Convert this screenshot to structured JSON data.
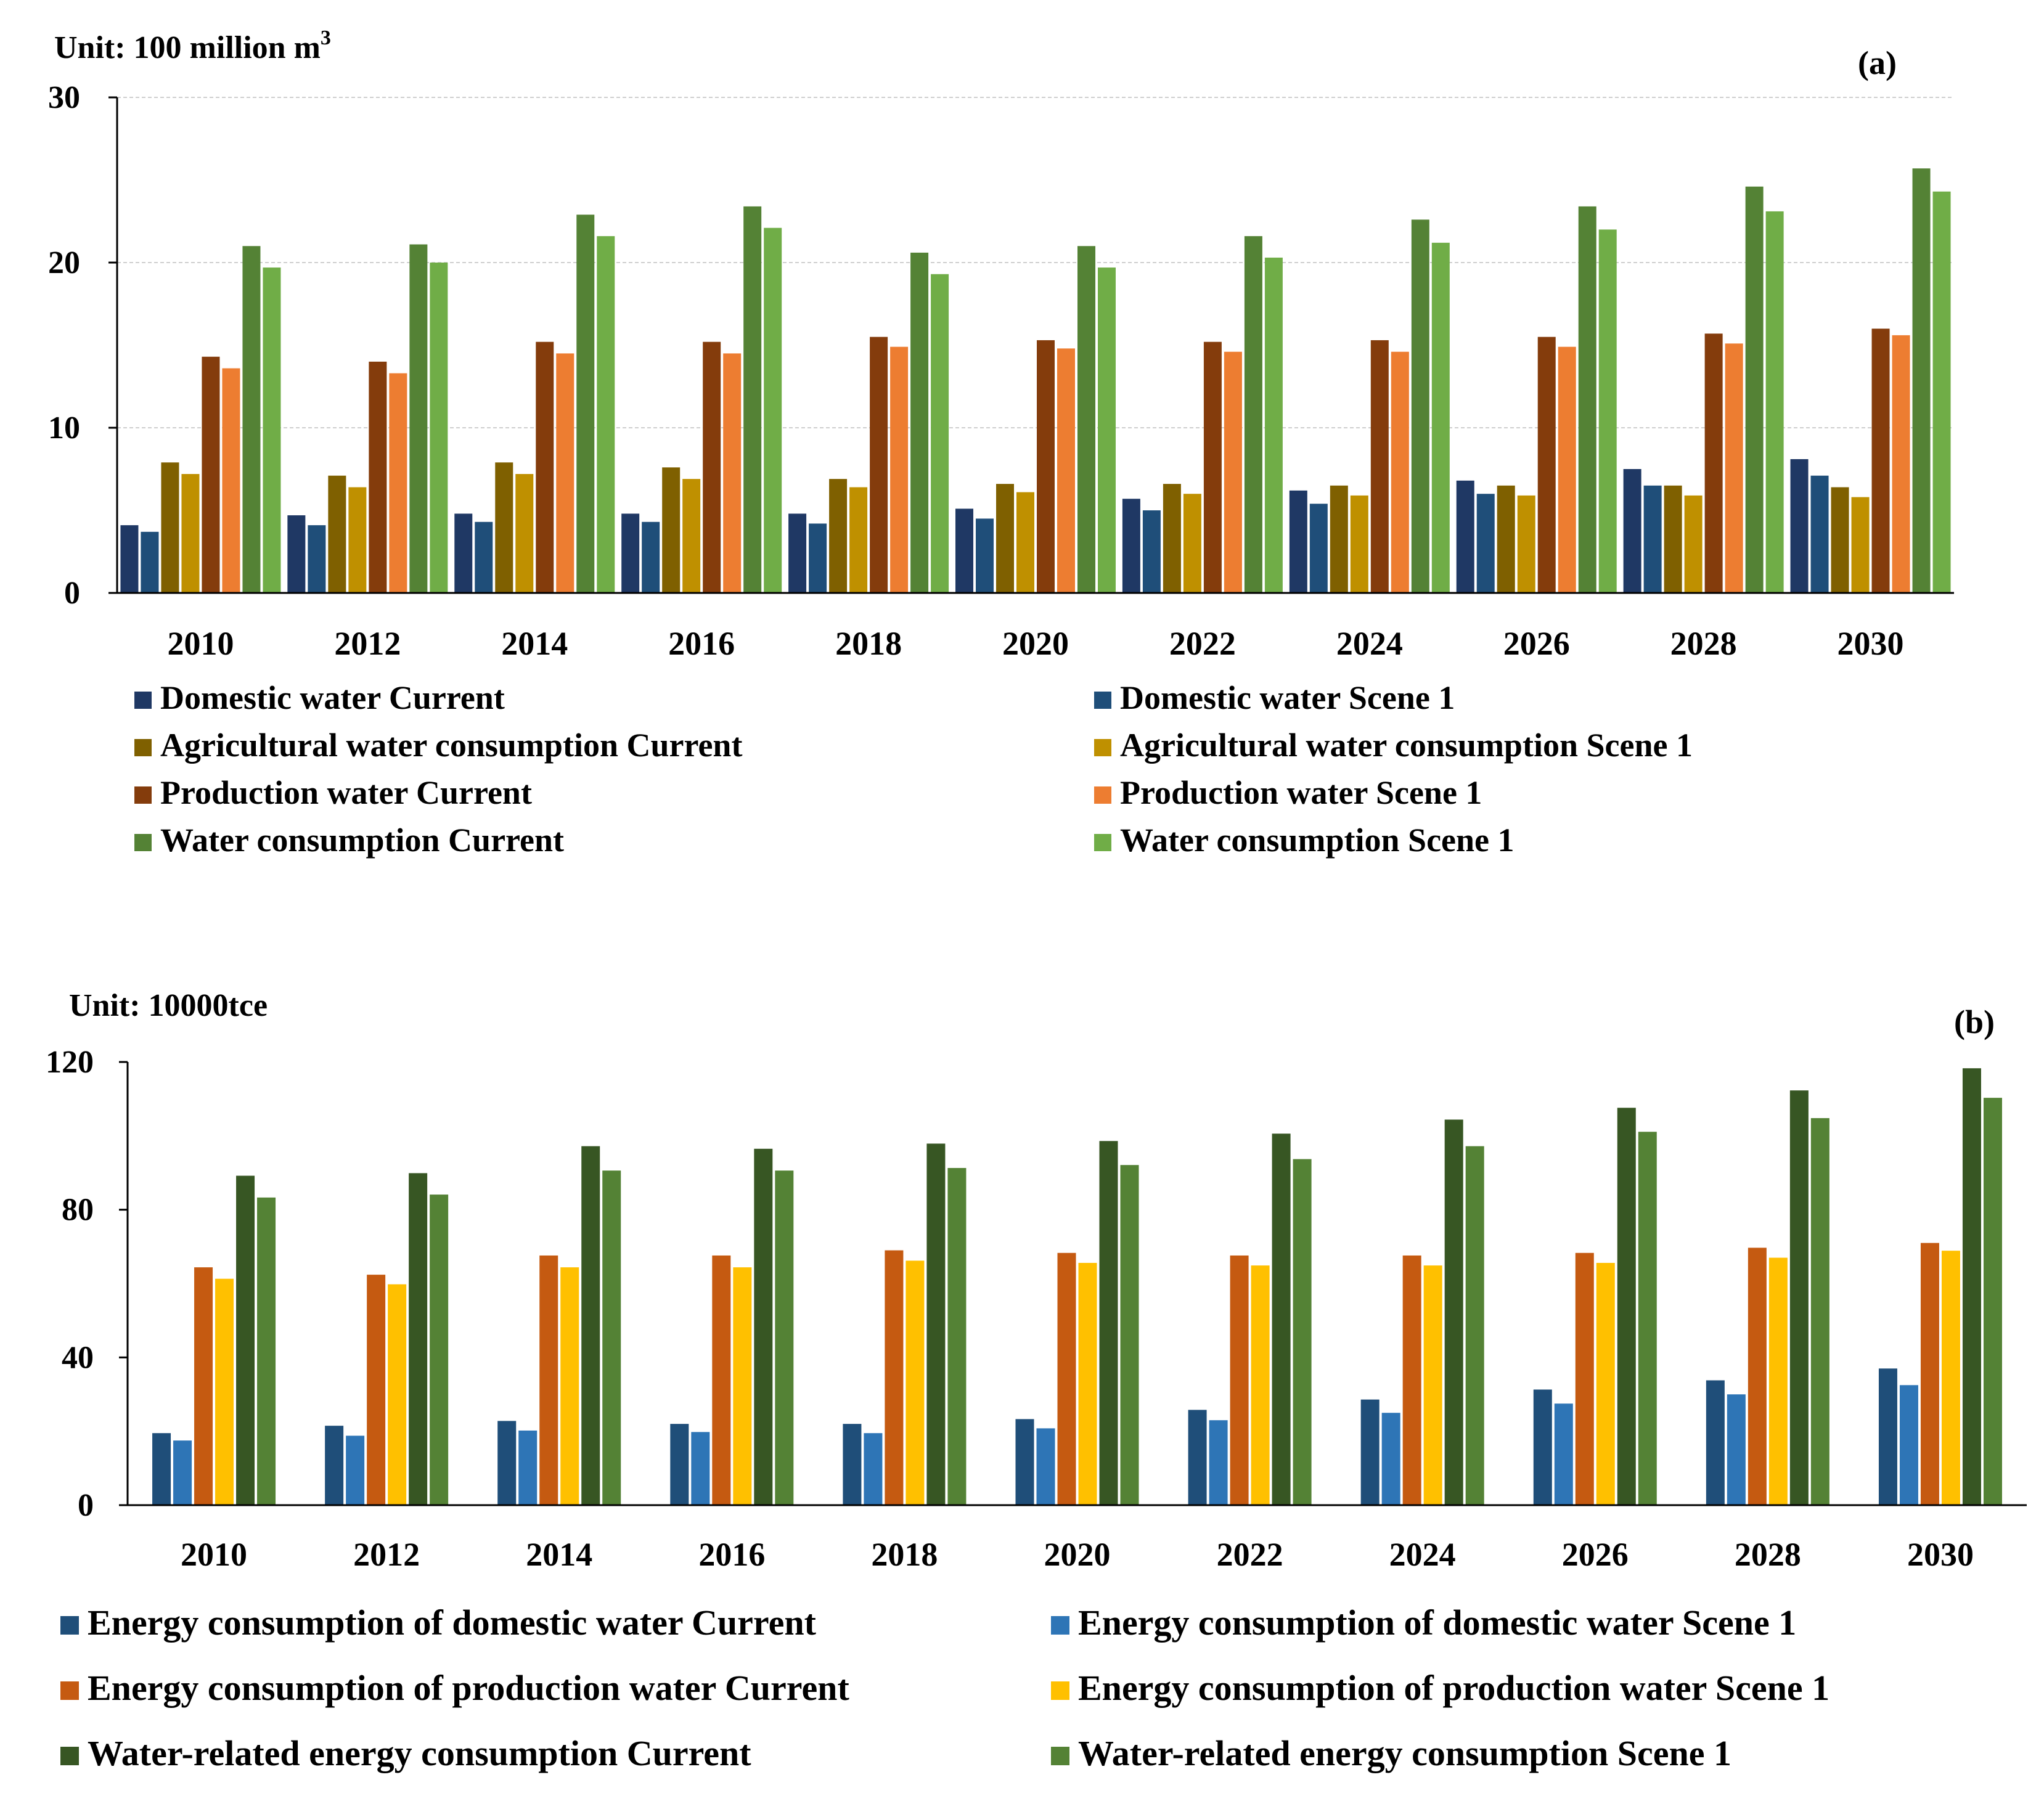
{
  "chart_data": [
    {
      "type": "bar",
      "panel_label": "(a)",
      "unit_label": "Unit: 100 million m",
      "unit_superscript": "3",
      "categories": [
        "2010",
        "2012",
        "2014",
        "2016",
        "2018",
        "2020",
        "2022",
        "2024",
        "2026",
        "2028",
        "2030"
      ],
      "ylim": [
        0,
        30
      ],
      "yticks": [
        0,
        10,
        20,
        30
      ],
      "grid": true,
      "legend_position": "bottom",
      "series": [
        {
          "name": "Domestic water Current",
          "color": "#1F3864",
          "values": [
            4.1,
            4.7,
            4.8,
            4.8,
            4.8,
            5.1,
            5.7,
            6.2,
            6.8,
            7.5,
            8.1
          ]
        },
        {
          "name": "Domestic water Scene 1",
          "color": "#1F4E79",
          "values": [
            3.7,
            4.1,
            4.3,
            4.3,
            4.2,
            4.5,
            5.0,
            5.4,
            6.0,
            6.5,
            7.1
          ]
        },
        {
          "name": "Agricultural water consumption Current",
          "color": "#7F6000",
          "values": [
            7.9,
            7.1,
            7.9,
            7.6,
            6.9,
            6.6,
            6.6,
            6.5,
            6.5,
            6.5,
            6.4
          ]
        },
        {
          "name": "Agricultural water consumption Scene 1",
          "color": "#BF9000",
          "values": [
            7.2,
            6.4,
            7.2,
            6.9,
            6.4,
            6.1,
            6.0,
            5.9,
            5.9,
            5.9,
            5.8
          ]
        },
        {
          "name": "Production water Current",
          "color": "#843C0C",
          "values": [
            14.3,
            14.0,
            15.2,
            15.2,
            15.5,
            15.3,
            15.2,
            15.3,
            15.5,
            15.7,
            16.0
          ]
        },
        {
          "name": "Production water Scene 1",
          "color": "#ED7D31",
          "values": [
            13.6,
            13.3,
            14.5,
            14.5,
            14.9,
            14.8,
            14.6,
            14.6,
            14.9,
            15.1,
            15.6
          ]
        },
        {
          "name": "Water consumption Current",
          "color": "#548235",
          "values": [
            21.0,
            21.1,
            22.9,
            23.4,
            20.6,
            21.0,
            21.6,
            22.6,
            23.4,
            24.6,
            25.7
          ]
        },
        {
          "name": "Water consumption Scene 1",
          "color": "#70AD47",
          "values": [
            19.7,
            20.0,
            21.6,
            22.1,
            19.3,
            19.7,
            20.3,
            21.2,
            22.0,
            23.1,
            24.3
          ]
        }
      ]
    },
    {
      "type": "bar",
      "panel_label": "(b)",
      "unit_label": "Unit: 10000tce",
      "categories": [
        "2010",
        "2012",
        "2014",
        "2016",
        "2018",
        "2020",
        "2022",
        "2024",
        "2026",
        "2028",
        "2030"
      ],
      "ylim": [
        0,
        120
      ],
      "yticks": [
        0,
        40,
        80,
        120
      ],
      "grid": false,
      "legend_position": "bottom",
      "series": [
        {
          "name": "Energy consumption of domestic water Current",
          "color": "#1F4E79",
          "values": [
            19.5,
            21.5,
            22.8,
            22.0,
            22.0,
            23.3,
            25.8,
            28.6,
            31.3,
            33.8,
            37.0
          ]
        },
        {
          "name": "Energy consumption of domestic water Scene 1",
          "color": "#2E75B6",
          "values": [
            17.5,
            18.8,
            20.2,
            19.8,
            19.5,
            20.8,
            23.0,
            25.0,
            27.5,
            30.0,
            32.5
          ]
        },
        {
          "name": "Energy consumption of production water Current",
          "color": "#C55A11",
          "values": [
            64.4,
            62.4,
            67.6,
            67.6,
            69.0,
            68.3,
            67.6,
            67.6,
            68.3,
            69.7,
            71.0
          ]
        },
        {
          "name": "Energy consumption of production water Scene 1",
          "color": "#FFC000",
          "values": [
            61.3,
            59.8,
            64.4,
            64.4,
            66.2,
            65.6,
            64.9,
            64.9,
            65.6,
            67.0,
            68.9
          ]
        },
        {
          "name": "Water-related energy consumption Current",
          "color": "#375623",
          "values": [
            89.2,
            89.9,
            97.2,
            96.5,
            97.9,
            98.6,
            100.6,
            104.4,
            107.6,
            112.3,
            118.3
          ]
        },
        {
          "name": "Water-related energy consumption Scene 1",
          "color": "#548235",
          "values": [
            83.3,
            84.1,
            90.6,
            90.6,
            91.3,
            92.1,
            93.7,
            97.2,
            101.1,
            104.8,
            110.3
          ]
        }
      ]
    }
  ]
}
